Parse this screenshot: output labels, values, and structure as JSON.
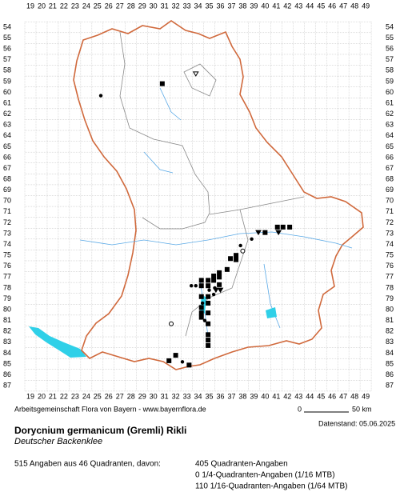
{
  "map": {
    "columns": [
      19,
      20,
      21,
      22,
      23,
      24,
      25,
      26,
      27,
      28,
      29,
      30,
      31,
      32,
      33,
      34,
      35,
      36,
      37,
      38,
      39,
      40,
      41,
      42,
      43,
      44,
      45,
      46,
      47,
      48,
      49
    ],
    "rows": [
      54,
      55,
      56,
      57,
      58,
      59,
      60,
      61,
      62,
      63,
      64,
      65,
      66,
      67,
      68,
      69,
      70,
      71,
      72,
      73,
      74,
      75,
      76,
      77,
      78,
      79,
      80,
      81,
      82,
      83,
      84,
      85,
      86,
      87
    ],
    "markers": [
      {
        "kind": "dot",
        "x": 25.3,
        "y": 60.3
      },
      {
        "kind": "square",
        "x": 30.8,
        "y": 59.2
      },
      {
        "kind": "triangle-open",
        "x": 33.8,
        "y": 58.3
      },
      {
        "kind": "square",
        "x": 41.1,
        "y": 72.4
      },
      {
        "kind": "square",
        "x": 41.6,
        "y": 72.4
      },
      {
        "kind": "square",
        "x": 42.2,
        "y": 72.4
      },
      {
        "kind": "square",
        "x": 40.0,
        "y": 72.9
      },
      {
        "kind": "triangle",
        "x": 39.4,
        "y": 72.9
      },
      {
        "kind": "triangle",
        "x": 41.2,
        "y": 72.9
      },
      {
        "kind": "dot",
        "x": 38.8,
        "y": 73.5
      },
      {
        "kind": "dot",
        "x": 37.8,
        "y": 74.1
      },
      {
        "kind": "circle",
        "x": 38.0,
        "y": 74.6
      },
      {
        "kind": "square",
        "x": 37.4,
        "y": 75.0
      },
      {
        "kind": "square",
        "x": 36.9,
        "y": 75.3
      },
      {
        "kind": "square",
        "x": 37.4,
        "y": 75.4
      },
      {
        "kind": "square",
        "x": 36.6,
        "y": 76.3
      },
      {
        "kind": "square",
        "x": 35.9,
        "y": 76.6
      },
      {
        "kind": "square",
        "x": 35.9,
        "y": 77.0
      },
      {
        "kind": "square",
        "x": 35.4,
        "y": 76.9
      },
      {
        "kind": "square",
        "x": 34.9,
        "y": 77.3
      },
      {
        "kind": "square",
        "x": 35.4,
        "y": 77.3
      },
      {
        "kind": "square",
        "x": 34.3,
        "y": 77.3
      },
      {
        "kind": "square",
        "x": 34.3,
        "y": 77.8
      },
      {
        "kind": "square",
        "x": 34.9,
        "y": 77.8
      },
      {
        "kind": "square",
        "x": 35.9,
        "y": 77.7
      },
      {
        "kind": "square",
        "x": 34.3,
        "y": 78.8
      },
      {
        "kind": "square",
        "x": 34.9,
        "y": 78.8
      },
      {
        "kind": "square",
        "x": 34.9,
        "y": 79.4
      },
      {
        "kind": "square",
        "x": 34.3,
        "y": 79.8
      },
      {
        "kind": "square",
        "x": 34.3,
        "y": 80.3
      },
      {
        "kind": "square",
        "x": 34.3,
        "y": 80.7
      },
      {
        "kind": "square",
        "x": 34.9,
        "y": 80.3
      },
      {
        "kind": "square",
        "x": 34.9,
        "y": 81.3
      },
      {
        "kind": "square",
        "x": 34.9,
        "y": 82.3
      },
      {
        "kind": "square",
        "x": 34.9,
        "y": 82.8
      },
      {
        "kind": "square",
        "x": 34.9,
        "y": 83.3
      },
      {
        "kind": "square",
        "x": 32.0,
        "y": 84.2
      },
      {
        "kind": "square",
        "x": 31.4,
        "y": 84.7
      },
      {
        "kind": "square",
        "x": 33.2,
        "y": 85.1
      },
      {
        "kind": "dot",
        "x": 33.8,
        "y": 77.8
      },
      {
        "kind": "dot",
        "x": 33.4,
        "y": 77.8
      },
      {
        "kind": "dot",
        "x": 35.5,
        "y": 78.0
      },
      {
        "kind": "dot",
        "x": 35.0,
        "y": 78.2
      },
      {
        "kind": "dot",
        "x": 35.4,
        "y": 78.6
      },
      {
        "kind": "dot",
        "x": 34.4,
        "y": 79.4
      },
      {
        "kind": "dot",
        "x": 34.6,
        "y": 81.0
      },
      {
        "kind": "triangle",
        "x": 36.0,
        "y": 78.2
      },
      {
        "kind": "triangle",
        "x": 35.6,
        "y": 78.2
      },
      {
        "kind": "circle",
        "x": 31.6,
        "y": 81.3
      },
      {
        "kind": "dot",
        "x": 32.6,
        "y": 84.8
      }
    ]
  },
  "footer": {
    "credit": "Arbeitsgemeinschaft Flora von Bayern - www.bayernflora.de",
    "scale_start": "0",
    "scale_end": "50 km",
    "date": "Datenstand: 05.06.2025",
    "title": "Dorycnium germanicum (Gremli) Rikli",
    "subtitle": "Deutscher Backenklee",
    "summary": "515 Angaben aus 46 Quadranten, davon:",
    "counts": [
      "405 Quadranten-Angaben",
      "0 1/4-Quadranten-Angaben (1/16 MTB)",
      "110 1/16-Quadranten-Angaben (1/64 MTB)"
    ]
  }
}
